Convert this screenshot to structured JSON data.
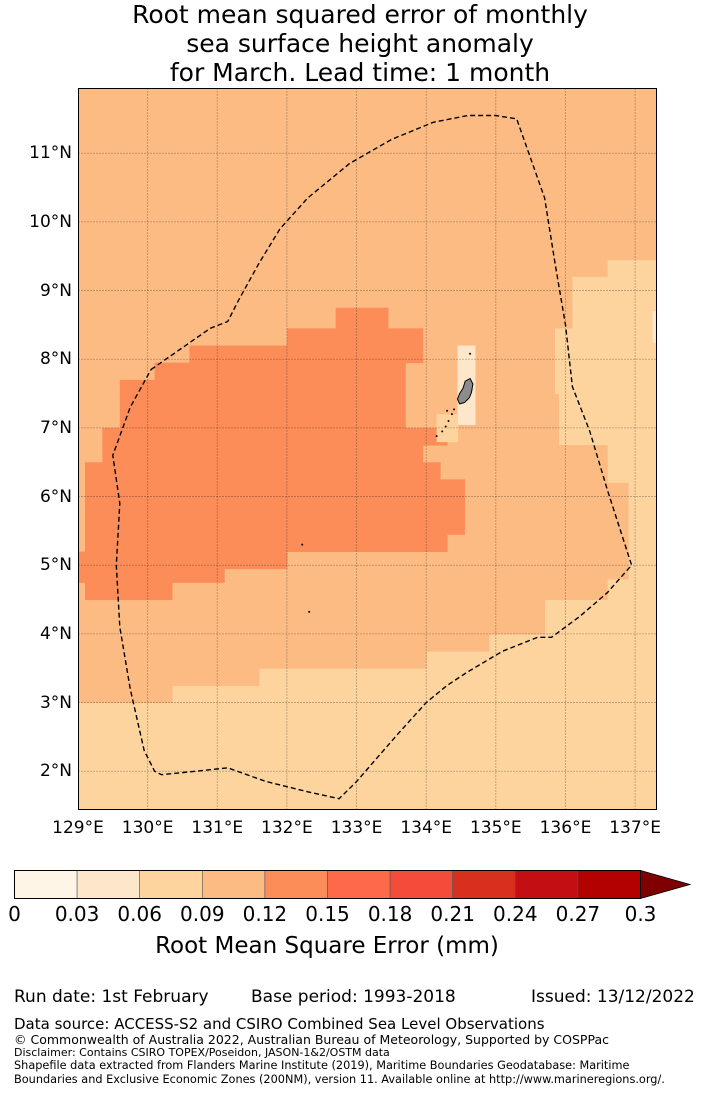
{
  "title": {
    "line1": "Root mean squared error of monthly",
    "line2": "sea surface height anomaly",
    "line3": "for March. Lead time: 1 month"
  },
  "map": {
    "lon_range": [
      129,
      137.3
    ],
    "lat_range": [
      1.45,
      11.95
    ],
    "lon_ticks": [
      "129°E",
      "130°E",
      "131°E",
      "132°E",
      "133°E",
      "134°E",
      "135°E",
      "136°E",
      "137°E"
    ],
    "lat_ticks": [
      "11°N",
      "10°N",
      "9°N",
      "8°N",
      "7°N",
      "6°N",
      "5°N",
      "4°N",
      "3°N",
      "2°N"
    ],
    "grid": true,
    "base_bin": 2,
    "regions": [
      {
        "bin": 3,
        "lon_min": 129.0,
        "lon_max": 137.3,
        "lat_min": 9.45,
        "lat_max": 11.95
      },
      {
        "bin": 3,
        "lon_min": 129.0,
        "lon_max": 136.6,
        "lat_min": 9.2,
        "lat_max": 9.45
      },
      {
        "bin": 3,
        "lon_min": 129.0,
        "lon_max": 136.1,
        "lat_min": 7.7,
        "lat_max": 9.2
      },
      {
        "bin": 3,
        "lon_min": 129.0,
        "lon_max": 135.9,
        "lat_min": 6.75,
        "lat_max": 7.7
      },
      {
        "bin": 3,
        "lon_min": 129.0,
        "lon_max": 136.6,
        "lat_min": 6.2,
        "lat_max": 6.75
      },
      {
        "bin": 3,
        "lon_min": 129.0,
        "lon_max": 136.9,
        "lat_min": 4.8,
        "lat_max": 6.2
      },
      {
        "bin": 3,
        "lon_min": 129.0,
        "lon_max": 136.6,
        "lat_min": 4.5,
        "lat_max": 4.8
      },
      {
        "bin": 3,
        "lon_min": 129.0,
        "lon_max": 135.7,
        "lat_min": 4.0,
        "lat_max": 4.5
      },
      {
        "bin": 3,
        "lon_min": 129.0,
        "lon_max": 134.9,
        "lat_min": 3.75,
        "lat_max": 4.0
      },
      {
        "bin": 3,
        "lon_min": 129.0,
        "lon_max": 134.0,
        "lat_min": 3.5,
        "lat_max": 3.75
      },
      {
        "bin": 3,
        "lon_min": 129.0,
        "lon_max": 131.6,
        "lat_min": 3.25,
        "lat_max": 3.5
      },
      {
        "bin": 3,
        "lon_min": 129.0,
        "lon_max": 130.35,
        "lat_min": 3.0,
        "lat_max": 3.25
      },
      {
        "bin": 2,
        "lon_min": 136.1,
        "lon_max": 137.3,
        "lat_min": 7.5,
        "lat_max": 9.2
      },
      {
        "bin": 2,
        "lon_min": 135.85,
        "lon_max": 136.1,
        "lat_min": 7.5,
        "lat_max": 8.45
      },
      {
        "bin": 1,
        "lon_min": 137.25,
        "lon_max": 137.3,
        "lat_min": 8.25,
        "lat_max": 8.7
      },
      {
        "bin": 4,
        "lon_min": 132.7,
        "lon_max": 133.45,
        "lat_min": 8.45,
        "lat_max": 8.75
      },
      {
        "bin": 4,
        "lon_min": 132.0,
        "lon_max": 133.95,
        "lat_min": 8.2,
        "lat_max": 8.45
      },
      {
        "bin": 4,
        "lon_min": 130.6,
        "lon_max": 133.95,
        "lat_min": 7.95,
        "lat_max": 8.2
      },
      {
        "bin": 4,
        "lon_min": 130.1,
        "lon_max": 133.7,
        "lat_min": 7.7,
        "lat_max": 7.95
      },
      {
        "bin": 4,
        "lon_min": 129.6,
        "lon_max": 133.7,
        "lat_min": 7.45,
        "lat_max": 7.7
      },
      {
        "bin": 4,
        "lon_min": 129.6,
        "lon_max": 133.7,
        "lat_min": 7.0,
        "lat_max": 7.45
      },
      {
        "bin": 4,
        "lon_min": 129.35,
        "lon_max": 134.3,
        "lat_min": 6.75,
        "lat_max": 7.0
      },
      {
        "bin": 4,
        "lon_min": 129.35,
        "lon_max": 133.95,
        "lat_min": 6.5,
        "lat_max": 6.75
      },
      {
        "bin": 4,
        "lon_min": 129.1,
        "lon_max": 134.2,
        "lat_min": 6.25,
        "lat_max": 6.5
      },
      {
        "bin": 4,
        "lon_min": 129.1,
        "lon_max": 134.55,
        "lat_min": 5.45,
        "lat_max": 6.25
      },
      {
        "bin": 4,
        "lon_min": 129.1,
        "lon_max": 134.3,
        "lat_min": 5.2,
        "lat_max": 5.45
      },
      {
        "bin": 4,
        "lon_min": 129.0,
        "lon_max": 132.0,
        "lat_min": 4.95,
        "lat_max": 5.2
      },
      {
        "bin": 4,
        "lon_min": 129.0,
        "lon_max": 131.1,
        "lat_min": 4.75,
        "lat_max": 4.95
      },
      {
        "bin": 4,
        "lon_min": 129.1,
        "lon_max": 130.35,
        "lat_min": 4.5,
        "lat_max": 4.75
      },
      {
        "bin": 1,
        "lon_min": 134.45,
        "lon_max": 134.7,
        "lat_min": 7.05,
        "lat_max": 7.95
      },
      {
        "bin": 1,
        "lon_min": 134.45,
        "lon_max": 134.7,
        "lat_min": 7.95,
        "lat_max": 8.2
      },
      {
        "bin": 2,
        "lon_min": 134.15,
        "lon_max": 134.45,
        "lat_min": 6.8,
        "lat_max": 7.2
      }
    ],
    "eez_boundary": [
      [
        130.05,
        7.85
      ],
      [
        130.9,
        8.45
      ],
      [
        131.15,
        8.55
      ],
      [
        131.3,
        8.85
      ],
      [
        131.6,
        9.4
      ],
      [
        131.9,
        9.9
      ],
      [
        132.3,
        10.35
      ],
      [
        132.9,
        10.85
      ],
      [
        133.5,
        11.2
      ],
      [
        134.1,
        11.45
      ],
      [
        134.6,
        11.55
      ],
      [
        135.0,
        11.55
      ],
      [
        135.3,
        11.5
      ],
      [
        135.7,
        10.35
      ],
      [
        135.85,
        9.4
      ],
      [
        136.0,
        8.5
      ],
      [
        136.1,
        7.6
      ],
      [
        136.35,
        6.95
      ],
      [
        136.6,
        6.1
      ],
      [
        136.95,
        5.0
      ],
      [
        136.6,
        4.6
      ],
      [
        136.2,
        4.25
      ],
      [
        135.8,
        3.95
      ],
      [
        135.6,
        3.95
      ],
      [
        135.1,
        3.75
      ],
      [
        134.6,
        3.45
      ],
      [
        134.3,
        3.25
      ],
      [
        134.0,
        3.0
      ],
      [
        133.6,
        2.55
      ],
      [
        133.3,
        2.2
      ],
      [
        133.0,
        1.85
      ],
      [
        132.75,
        1.6
      ],
      [
        132.3,
        1.7
      ],
      [
        131.7,
        1.85
      ],
      [
        131.15,
        2.05
      ],
      [
        130.7,
        2.0
      ],
      [
        130.2,
        1.95
      ],
      [
        130.1,
        2.0
      ],
      [
        129.95,
        2.3
      ],
      [
        129.75,
        3.2
      ],
      [
        129.6,
        4.1
      ],
      [
        129.55,
        5.0
      ],
      [
        129.6,
        5.9
      ],
      [
        129.5,
        6.6
      ],
      [
        129.75,
        7.3
      ],
      [
        130.05,
        7.85
      ]
    ],
    "land": {
      "color": "#8c8c8c",
      "main_island": [
        [
          134.56,
          7.68
        ],
        [
          134.63,
          7.72
        ],
        [
          134.67,
          7.64
        ],
        [
          134.65,
          7.52
        ],
        [
          134.62,
          7.44
        ],
        [
          134.55,
          7.37
        ],
        [
          134.48,
          7.35
        ],
        [
          134.45,
          7.42
        ],
        [
          134.48,
          7.5
        ],
        [
          134.53,
          7.58
        ],
        [
          134.56,
          7.68
        ]
      ],
      "islets": [
        [
          134.4,
          7.27
        ],
        [
          134.37,
          7.2
        ],
        [
          134.32,
          7.1
        ],
        [
          134.28,
          7.02
        ],
        [
          134.23,
          6.95
        ],
        [
          134.15,
          6.88
        ],
        [
          134.63,
          8.08
        ],
        [
          132.22,
          5.3
        ],
        [
          132.32,
          4.32
        ],
        [
          134.3,
          7.25
        ]
      ]
    }
  },
  "colorbar": {
    "label": "Root Mean Square Error (mm)",
    "colors": [
      "#fff5e6",
      "#fee6cb",
      "#fdd49e",
      "#fdbb84",
      "#fc8d59",
      "#fd6a4a",
      "#f44c3a",
      "#d7301f",
      "#c30f14",
      "#b30000"
    ],
    "extend_color": "#7f0000",
    "ticks": [
      "0",
      "0.03",
      "0.06",
      "0.09",
      "0.12",
      "0.15",
      "0.18",
      "0.21",
      "0.24",
      "0.27",
      "0.3"
    ]
  },
  "footer": {
    "run_date": "Run date: 1st February",
    "base_period": "Base period: 1993-2018",
    "issued": "Issued: 13/12/2022",
    "data_source": "Data source: ACCESS-S2 and CSIRO Combined Sea Level Observations",
    "copyright": "© Commonwealth of Australia 2022, Australian Bureau of Meteorology, Supported by COSPPac",
    "disclaimer": "Disclaimer: Contains CSIRO TOPEX/Poseidon, JASON-1&2/OSTM data",
    "shapefile_line1": "Shapefile data extracted from Flanders Marine Institute (2019), Maritime Boundaries Geodatabase: Maritime",
    "shapefile_line2": "Boundaries and Exclusive Economic Zones (200NM), version 11. Available online at http://www.marineregions.org/."
  }
}
